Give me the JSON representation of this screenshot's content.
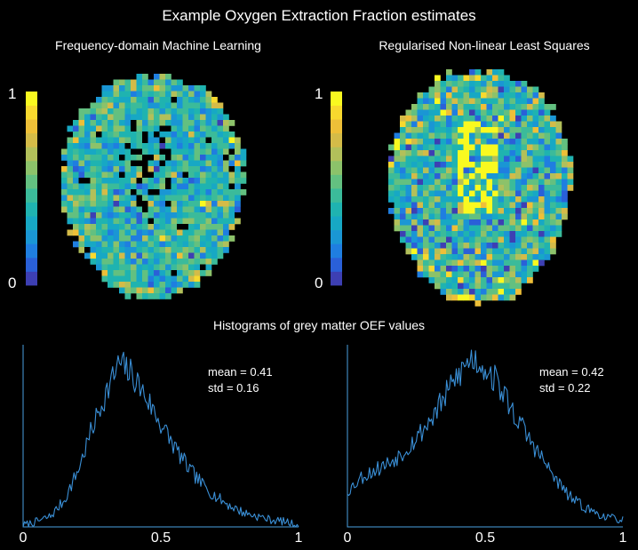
{
  "figure": {
    "title": "Example Oxygen Extraction Fraction estimates",
    "histograms_title": "Histograms of grey matter OEF values"
  },
  "colors": {
    "background": "#000000",
    "histogram_line": "#3a8fd6",
    "axis": "#4aa0e0",
    "colormap": [
      "#3d3fb3",
      "#2a60d8",
      "#1f7ee0",
      "#1a96d4",
      "#17a8c4",
      "#1fb3b0",
      "#3bbb9a",
      "#63c080",
      "#8cc26a",
      "#b2c05a",
      "#d4bb48",
      "#eebf38",
      "#f8d92e",
      "#f9f920"
    ]
  },
  "panels": [
    {
      "id": "ml",
      "title": "Frequency-domain Machine Learning",
      "colorbar": {
        "max_label": "1",
        "min_label": "0"
      }
    },
    {
      "id": "nlls",
      "title": "Regularised Non-linear Least Squares",
      "colorbar": {
        "max_label": "1",
        "min_label": "0"
      }
    }
  ],
  "chart_data": [
    {
      "type": "line",
      "title": "Frequency-domain Machine Learning",
      "xlim": [
        0,
        1
      ],
      "xticks": [
        "0",
        "0.5",
        "1"
      ],
      "xlabel": "",
      "ylabel": "",
      "grid": false,
      "annotations": {
        "mean": "mean = 0.41",
        "std": "std = 0.16"
      },
      "distribution": {
        "mean": 0.41,
        "std": 0.16,
        "peak": 0.35
      },
      "series": [
        {
          "x": [
            0.0,
            0.05,
            0.1,
            0.15,
            0.2,
            0.25,
            0.3,
            0.35,
            0.4,
            0.45,
            0.5,
            0.55,
            0.6,
            0.65,
            0.7,
            0.75,
            0.8,
            0.85,
            0.9,
            0.95,
            1.0
          ],
          "y": [
            0.01,
            0.03,
            0.06,
            0.15,
            0.32,
            0.55,
            0.75,
            0.92,
            0.85,
            0.72,
            0.58,
            0.45,
            0.33,
            0.24,
            0.17,
            0.12,
            0.08,
            0.06,
            0.04,
            0.03,
            0.01
          ]
        }
      ]
    },
    {
      "type": "line",
      "title": "Regularised Non-linear Least Squares",
      "xlim": [
        0,
        1
      ],
      "xticks": [
        "0",
        "0.5",
        "1"
      ],
      "xlabel": "",
      "ylabel": "",
      "grid": false,
      "annotations": {
        "mean": "mean = 0.42",
        "std": "std = 0.22"
      },
      "distribution": {
        "mean": 0.42,
        "std": 0.22,
        "peak": 0.47
      },
      "series": [
        {
          "x": [
            0.0,
            0.05,
            0.1,
            0.15,
            0.2,
            0.25,
            0.3,
            0.35,
            0.4,
            0.45,
            0.5,
            0.55,
            0.6,
            0.65,
            0.7,
            0.75,
            0.8,
            0.85,
            0.9,
            0.95,
            1.0
          ],
          "y": [
            0.2,
            0.28,
            0.32,
            0.36,
            0.42,
            0.5,
            0.6,
            0.72,
            0.85,
            0.95,
            0.9,
            0.8,
            0.65,
            0.52,
            0.4,
            0.28,
            0.18,
            0.12,
            0.08,
            0.05,
            0.04
          ]
        }
      ]
    }
  ]
}
